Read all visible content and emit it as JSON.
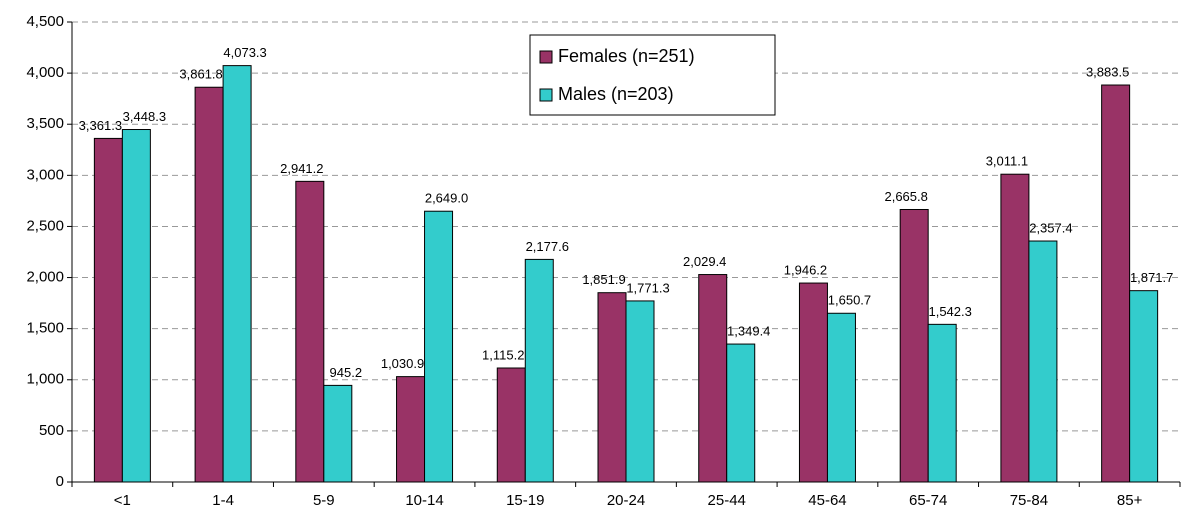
{
  "chart_data": {
    "type": "bar",
    "categories": [
      "<1",
      "1-4",
      "5-9",
      "10-14",
      "15-19",
      "20-24",
      "25-44",
      "45-64",
      "65-74",
      "75-84",
      "85+"
    ],
    "series": [
      {
        "name": "Females (n=251)",
        "color": "#993366",
        "values": [
          3361.3,
          3861.8,
          2941.2,
          1030.9,
          1115.2,
          1851.9,
          2029.4,
          1946.2,
          2665.8,
          3011.1,
          3883.5
        ],
        "value_labels": [
          "3,361.3",
          "3,861.8",
          "2,941.2",
          "1,030.9",
          "1,115.2",
          "1,851.9",
          "2,029.4",
          "1,946.2",
          "2,665.8",
          "3,011.1",
          "3,883.5"
        ]
      },
      {
        "name": "Males (n=203)",
        "color": "#33CCCC",
        "values": [
          3448.3,
          4073.3,
          945.2,
          2649.0,
          2177.6,
          1771.3,
          1349.4,
          1650.7,
          1542.3,
          2357.4,
          1871.7
        ],
        "value_labels": [
          "3,448.3",
          "4,073.3",
          "945.2",
          "2,649.0",
          "2,177.6",
          "1,771.3",
          "1,349.4",
          "1,650.7",
          "1,542.3",
          "2,357.4",
          "1,871.7"
        ]
      }
    ],
    "ylim": [
      0,
      4500
    ],
    "yticks": [
      0,
      500,
      {
        "value": 1000,
        "label": "1,000"
      },
      {
        "value": 1500,
        "label": "1,500"
      },
      {
        "value": 2000,
        "label": "2,000"
      },
      {
        "value": 2500,
        "label": "2,500"
      },
      {
        "value": 3000,
        "label": "3,000"
      },
      {
        "value": 3500,
        "label": "3,500"
      },
      {
        "value": 4000,
        "label": "4,000"
      },
      {
        "value": 4500,
        "label": "4,500"
      }
    ],
    "grid": true
  }
}
